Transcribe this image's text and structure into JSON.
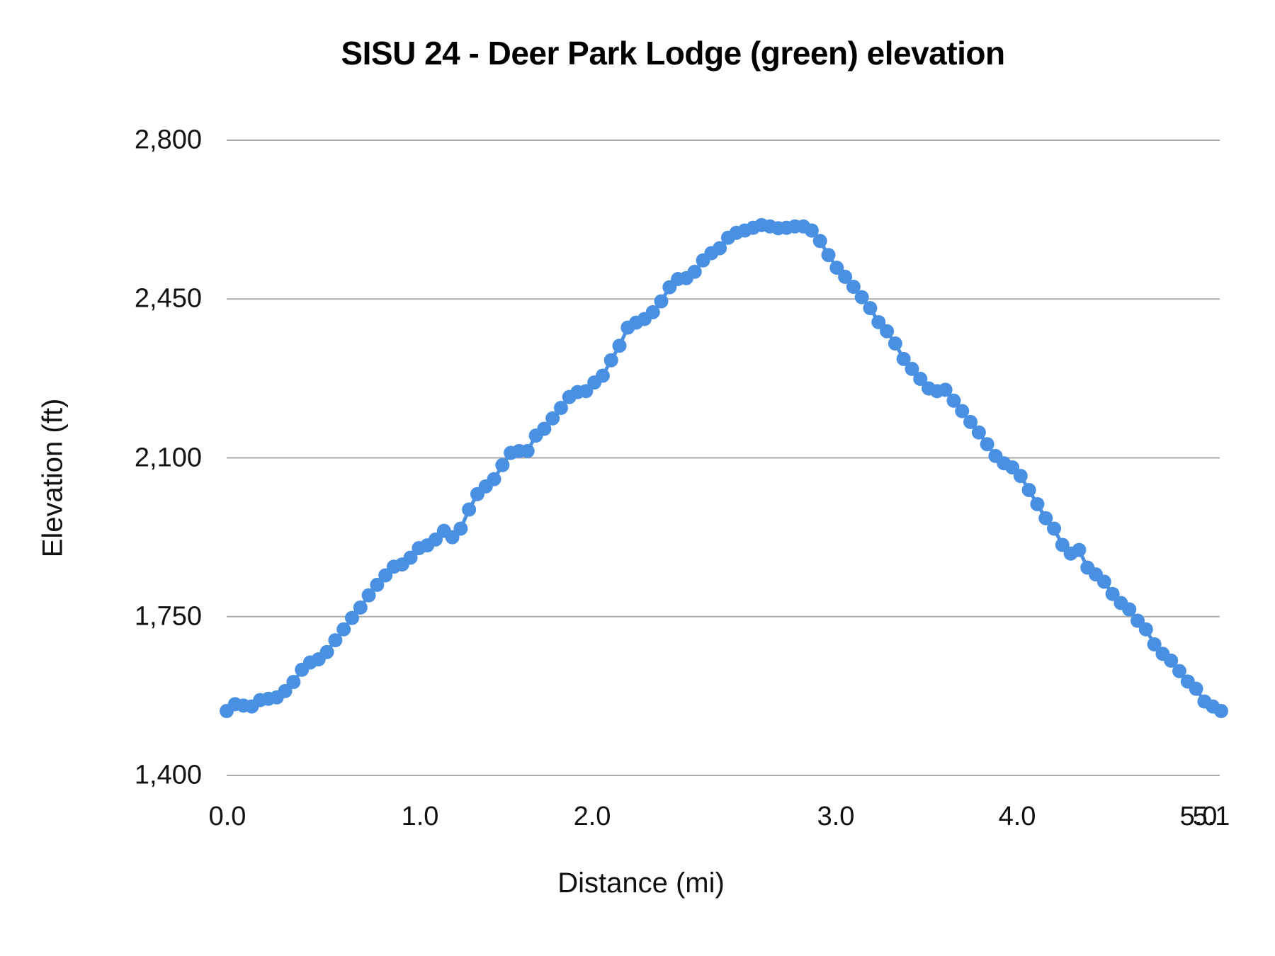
{
  "chart_data": {
    "type": "line",
    "title": "SISU 24 - Deer Park Lodge (green) elevation",
    "xlabel": "Distance (mi)",
    "ylabel": "Elevation (ft)",
    "ylim": [
      1400,
      2800
    ],
    "yticks": [
      "1,400",
      "1,750",
      "2,100",
      "2,450",
      "2,800"
    ],
    "xticks": [
      "0.0",
      "1.0",
      "2.0",
      "3.0",
      "4.0",
      "5.0",
      "5.1"
    ],
    "grid": true,
    "legend": "none",
    "series_color": "#4a90e2",
    "markers": true,
    "series": [
      {
        "name": "Elevation",
        "x_start": 0.0,
        "x_end": 5.1,
        "values": [
          1542,
          1557,
          1554,
          1552,
          1566,
          1569,
          1572,
          1586,
          1606,
          1633,
          1649,
          1656,
          1672,
          1698,
          1722,
          1747,
          1770,
          1797,
          1820,
          1841,
          1860,
          1865,
          1880,
          1901,
          1907,
          1920,
          1939,
          1925,
          1944,
          1986,
          2020,
          2037,
          2053,
          2084,
          2111,
          2115,
          2115,
          2149,
          2164,
          2187,
          2210,
          2234,
          2245,
          2247,
          2266,
          2281,
          2315,
          2347,
          2387,
          2398,
          2406,
          2421,
          2445,
          2476,
          2494,
          2496,
          2510,
          2535,
          2551,
          2562,
          2585,
          2596,
          2601,
          2607,
          2613,
          2610,
          2606,
          2607,
          2610,
          2610,
          2601,
          2578,
          2547,
          2519,
          2499,
          2477,
          2454,
          2430,
          2399,
          2379,
          2352,
          2318,
          2296,
          2274,
          2253,
          2247,
          2250,
          2226,
          2203,
          2179,
          2156,
          2130,
          2104,
          2088,
          2079,
          2060,
          2029,
          1998,
          1967,
          1944,
          1908,
          1889,
          1897,
          1858,
          1843,
          1827,
          1800,
          1780,
          1766,
          1741,
          1722,
          1689,
          1668,
          1653,
          1630,
          1607,
          1591,
          1563,
          1552,
          1542
        ]
      }
    ]
  }
}
